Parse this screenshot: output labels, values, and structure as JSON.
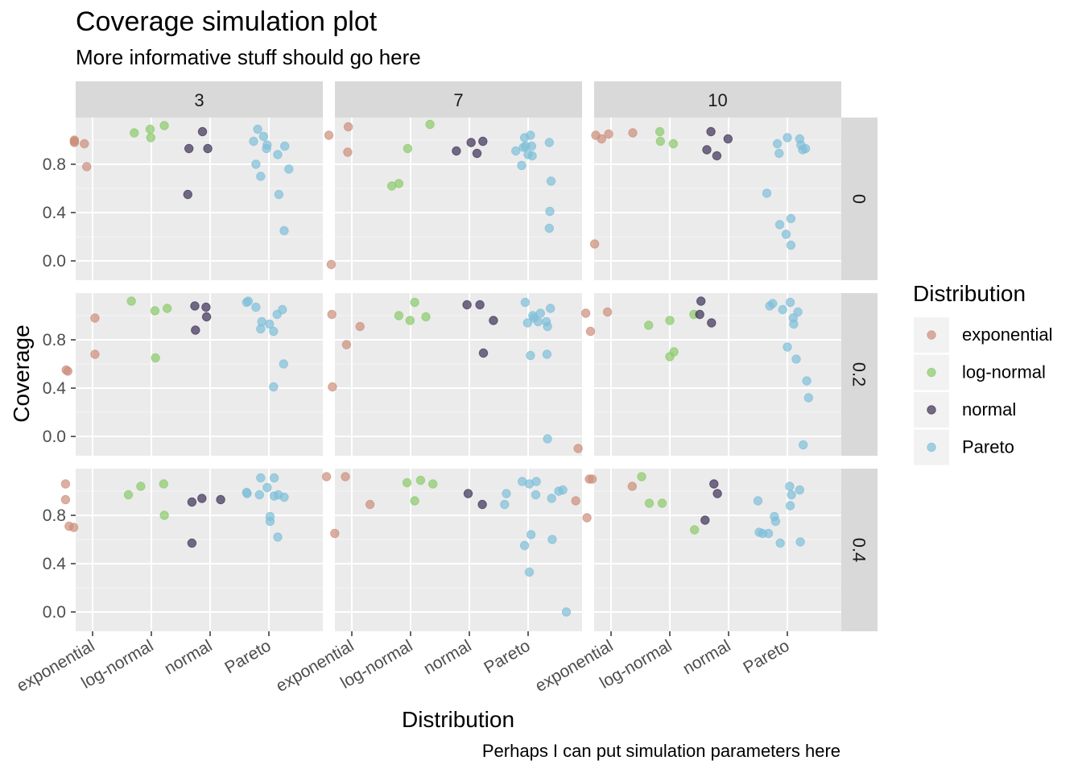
{
  "chart_data": {
    "type": "scatter",
    "title": "Coverage simulation plot",
    "subtitle": "More informative stuff should go here",
    "caption": "Perhaps I can put simulation parameters here",
    "xlabel": "Distribution",
    "ylabel": "Coverage",
    "categories": [
      "exponential",
      "log-normal",
      "normal",
      "Pareto"
    ],
    "y_ticks": [
      "0.0",
      "0.4",
      "0.8"
    ],
    "y_tick_values": [
      0.0,
      0.4,
      0.8
    ],
    "ylim": [
      -0.12,
      1.22
    ],
    "grid": true,
    "legend": {
      "title": "Distribution",
      "position": "right",
      "items": [
        {
          "label": "exponential",
          "color": "#CC8F7A"
        },
        {
          "label": "log-normal",
          "color": "#8ACB6A"
        },
        {
          "label": "normal",
          "color": "#3C3055"
        },
        {
          "label": "Pareto",
          "color": "#7FBFD8"
        }
      ]
    },
    "facet_cols": [
      "3",
      "7",
      "10"
    ],
    "facet_rows": [
      "0",
      "0.2",
      "0.4"
    ],
    "panels": [
      {
        "col": "3",
        "row": "0",
        "points": [
          [
            0.69,
            1.0
          ],
          [
            0.69,
            0.99
          ],
          [
            0.69,
            0.98
          ],
          [
            0.86,
            0.97
          ],
          [
            0.9,
            0.78
          ],
          [
            1.71,
            1.06
          ],
          [
            1.98,
            1.09
          ],
          [
            1.99,
            1.02
          ],
          [
            2.22,
            1.12
          ],
          [
            2.64,
            0.93
          ],
          [
            2.62,
            0.55
          ],
          [
            2.87,
            1.07
          ],
          [
            2.96,
            0.93
          ],
          [
            3.74,
            0.99
          ],
          [
            3.78,
            0.8
          ],
          [
            3.81,
            1.09
          ],
          [
            3.86,
            0.7
          ],
          [
            3.91,
            1.03
          ],
          [
            3.96,
            0.93
          ],
          [
            3.97,
            0.96
          ],
          [
            4.15,
            0.88
          ],
          [
            4.17,
            0.55
          ],
          [
            4.26,
            0.25
          ],
          [
            4.27,
            0.95
          ],
          [
            4.34,
            0.76
          ]
        ]
      },
      {
        "col": "7",
        "row": "0",
        "points": [
          [
            0.61,
            1.04
          ],
          [
            0.65,
            -0.03
          ],
          [
            0.94,
            1.11
          ],
          [
            0.93,
            0.9
          ],
          [
            1.68,
            0.62
          ],
          [
            1.8,
            0.64
          ],
          [
            1.95,
            0.93
          ],
          [
            2.33,
            1.13
          ],
          [
            2.78,
            0.91
          ],
          [
            3.03,
            0.98
          ],
          [
            3.13,
            0.89
          ],
          [
            3.23,
            0.99
          ],
          [
            3.79,
            0.91
          ],
          [
            3.89,
            0.79
          ],
          [
            3.92,
            0.94
          ],
          [
            3.94,
            1.02
          ],
          [
            3.96,
            0.95
          ],
          [
            4.0,
            0.88
          ],
          [
            4.04,
            1.04
          ],
          [
            4.06,
            0.95
          ],
          [
            4.07,
            0.87
          ],
          [
            4.36,
            0.98
          ],
          [
            4.39,
            0.66
          ],
          [
            4.37,
            0.41
          ],
          [
            4.36,
            0.27
          ]
        ]
      },
      {
        "col": "10",
        "row": "0",
        "points": [
          [
            0.72,
            0.14
          ],
          [
            0.74,
            1.04
          ],
          [
            0.84,
            1.01
          ],
          [
            0.96,
            1.05
          ],
          [
            1.37,
            1.06
          ],
          [
            1.83,
            1.07
          ],
          [
            1.84,
            0.99
          ],
          [
            2.06,
            0.97
          ],
          [
            2.63,
            0.92
          ],
          [
            2.7,
            1.07
          ],
          [
            2.8,
            0.87
          ],
          [
            2.99,
            1.01
          ],
          [
            3.65,
            0.56
          ],
          [
            3.83,
            0.97
          ],
          [
            3.86,
            0.89
          ],
          [
            3.87,
            0.3
          ],
          [
            3.98,
            0.22
          ],
          [
            4.0,
            1.02
          ],
          [
            4.06,
            0.35
          ],
          [
            4.06,
            0.13
          ],
          [
            4.21,
            1.01
          ],
          [
            4.23,
            0.96
          ],
          [
            4.26,
            0.92
          ],
          [
            4.31,
            0.93
          ]
        ]
      },
      {
        "col": "3",
        "row": "0.2",
        "points": [
          [
            0.55,
            0.55
          ],
          [
            0.58,
            0.54
          ],
          [
            1.04,
            0.98
          ],
          [
            1.04,
            0.68
          ],
          [
            1.66,
            1.12
          ],
          [
            2.06,
            1.04
          ],
          [
            2.07,
            0.65
          ],
          [
            2.27,
            1.06
          ],
          [
            2.74,
            1.08
          ],
          [
            2.75,
            0.88
          ],
          [
            2.93,
            1.07
          ],
          [
            2.94,
            0.99
          ],
          [
            3.62,
            1.11
          ],
          [
            3.65,
            1.12
          ],
          [
            3.78,
            1.07
          ],
          [
            3.86,
            0.89
          ],
          [
            3.88,
            0.95
          ],
          [
            4.01,
            0.93
          ],
          [
            4.08,
            0.87
          ],
          [
            4.08,
            0.41
          ],
          [
            4.14,
            1.01
          ],
          [
            4.23,
            1.05
          ],
          [
            4.25,
            0.6
          ]
        ]
      },
      {
        "col": "7",
        "row": "0.2",
        "points": [
          [
            0.66,
            1.01
          ],
          [
            0.67,
            0.41
          ],
          [
            0.91,
            0.76
          ],
          [
            1.14,
            0.91
          ],
          [
            1.8,
            1.0
          ],
          [
            1.99,
            0.96
          ],
          [
            2.07,
            1.11
          ],
          [
            2.26,
            0.99
          ],
          [
            2.96,
            1.09
          ],
          [
            3.18,
            1.09
          ],
          [
            3.24,
            0.69
          ],
          [
            3.41,
            0.96
          ],
          [
            3.95,
            1.11
          ],
          [
            3.99,
            0.94
          ],
          [
            4.04,
            0.67
          ],
          [
            4.08,
            1.0
          ],
          [
            4.1,
            0.98
          ],
          [
            4.17,
            0.95
          ],
          [
            4.21,
            1.02
          ],
          [
            4.31,
            0.95
          ],
          [
            4.32,
            0.68
          ],
          [
            4.33,
            0.91
          ],
          [
            4.38,
            1.06
          ],
          [
            4.33,
            -0.02
          ]
        ]
      },
      {
        "col": "10",
        "row": "0.2",
        "points": [
          [
            0.44,
            -0.1
          ],
          [
            0.57,
            1.02
          ],
          [
            0.65,
            0.87
          ],
          [
            0.94,
            1.03
          ],
          [
            1.64,
            0.92
          ],
          [
            2.0,
            0.96
          ],
          [
            2.0,
            0.66
          ],
          [
            2.07,
            0.7
          ],
          [
            2.41,
            1.01
          ],
          [
            2.51,
            1.01
          ],
          [
            2.53,
            1.12
          ],
          [
            2.71,
            0.94
          ],
          [
            3.7,
            1.08
          ],
          [
            3.75,
            1.1
          ],
          [
            3.92,
            1.05
          ],
          [
            4.0,
            0.74
          ],
          [
            4.05,
            1.11
          ],
          [
            4.1,
            0.98
          ],
          [
            4.11,
            0.93
          ],
          [
            4.15,
            0.64
          ],
          [
            4.18,
            1.03
          ],
          [
            4.27,
            -0.07
          ],
          [
            4.33,
            0.46
          ],
          [
            4.36,
            0.32
          ]
        ]
      },
      {
        "col": "3",
        "row": "0.4",
        "points": [
          [
            0.54,
            1.06
          ],
          [
            0.54,
            0.93
          ],
          [
            0.6,
            0.71
          ],
          [
            0.68,
            0.7
          ],
          [
            1.61,
            0.97
          ],
          [
            1.82,
            1.04
          ],
          [
            2.21,
            1.06
          ],
          [
            2.22,
            0.8
          ],
          [
            2.69,
            0.57
          ],
          [
            2.69,
            0.91
          ],
          [
            2.86,
            0.94
          ],
          [
            3.18,
            0.93
          ],
          [
            3.62,
            0.99
          ],
          [
            3.63,
            0.98
          ],
          [
            3.84,
            0.97
          ],
          [
            3.86,
            1.11
          ],
          [
            3.97,
            1.03
          ],
          [
            4.02,
            0.75
          ],
          [
            4.02,
            0.79
          ],
          [
            4.09,
            1.11
          ],
          [
            4.09,
            0.96
          ],
          [
            4.15,
            0.62
          ],
          [
            4.16,
            0.97
          ],
          [
            4.26,
            0.95
          ]
        ]
      },
      {
        "col": "7",
        "row": "0.4",
        "points": [
          [
            0.57,
            1.12
          ],
          [
            0.71,
            0.65
          ],
          [
            0.89,
            1.12
          ],
          [
            1.31,
            0.89
          ],
          [
            1.94,
            1.07
          ],
          [
            2.07,
            0.92
          ],
          [
            2.17,
            1.09
          ],
          [
            2.38,
            1.06
          ],
          [
            2.98,
            0.98
          ],
          [
            3.22,
            0.89
          ],
          [
            3.6,
            0.89
          ],
          [
            3.63,
            0.98
          ],
          [
            3.9,
            1.08
          ],
          [
            3.94,
            0.55
          ],
          [
            4.02,
            0.33
          ],
          [
            4.02,
            1.06
          ],
          [
            4.05,
            0.64
          ],
          [
            4.13,
            0.97
          ],
          [
            4.14,
            1.08
          ],
          [
            4.4,
            0.94
          ],
          [
            4.41,
            0.6
          ],
          [
            4.52,
            1.0
          ],
          [
            4.59,
            1.01
          ],
          [
            4.65,
            0.0
          ]
        ]
      },
      {
        "col": "10",
        "row": "0.4",
        "points": [
          [
            0.4,
            0.92
          ],
          [
            0.59,
            0.78
          ],
          [
            0.63,
            1.1
          ],
          [
            0.68,
            1.1
          ],
          [
            1.36,
            1.04
          ],
          [
            1.52,
            1.12
          ],
          [
            1.65,
            0.9
          ],
          [
            1.87,
            0.9
          ],
          [
            2.42,
            0.68
          ],
          [
            2.6,
            0.76
          ],
          [
            2.75,
            1.06
          ],
          [
            2.81,
            0.98
          ],
          [
            3.5,
            0.92
          ],
          [
            3.52,
            0.66
          ],
          [
            3.58,
            0.65
          ],
          [
            3.68,
            0.65
          ],
          [
            3.78,
            0.79
          ],
          [
            3.8,
            0.75
          ],
          [
            3.88,
            0.57
          ],
          [
            4.04,
            1.04
          ],
          [
            4.05,
            0.88
          ],
          [
            4.07,
            0.97
          ],
          [
            4.21,
            1.01
          ],
          [
            4.22,
            0.58
          ]
        ]
      }
    ]
  }
}
